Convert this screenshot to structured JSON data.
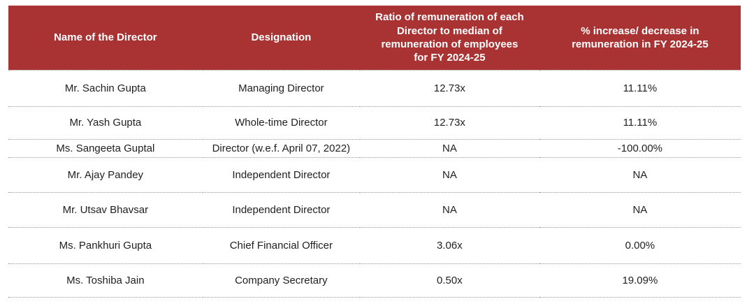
{
  "table": {
    "title_semantic": "Director remuneration ratio table",
    "colors": {
      "header_background": "#A93232",
      "header_text": "#FFFFFF",
      "body_text": "#212121",
      "row_divider": "#979797"
    },
    "columns": [
      {
        "label": "Name of the Director"
      },
      {
        "label": "Designation"
      },
      {
        "label": "Ratio of remuneration of each\nDirector to median of\nremuneration of employees\nfor FY 2024-25"
      },
      {
        "label": "% increase/ decrease in\nremuneration in FY 2024-25"
      }
    ],
    "rows": [
      {
        "name": "Mr. Sachin Gupta",
        "designation": "Managing Director",
        "ratio": "12.73x",
        "change": "11.11%"
      },
      {
        "name": "Mr. Yash Gupta",
        "designation": "Whole-time Director",
        "ratio": "12.73x",
        "change": "11.11%"
      },
      {
        "name": "Ms. Sangeeta Guptal",
        "designation": "Director (w.e.f. April 07, 2022)",
        "ratio": "NA",
        "change": "-100.00%"
      },
      {
        "name": "Mr. Ajay Pandey",
        "designation": "Independent Director",
        "ratio": "NA",
        "change": "NA"
      },
      {
        "name": "Mr. Utsav Bhavsar",
        "designation": "Independent Director",
        "ratio": "NA",
        "change": "NA"
      },
      {
        "name": "Ms. Pankhuri Gupta",
        "designation": "Chief Financial Officer",
        "ratio": "3.06x",
        "change": "0.00%"
      },
      {
        "name": "Ms. Toshiba Jain",
        "designation": "Company Secretary",
        "ratio": "0.50x",
        "change": "19.09%"
      }
    ]
  }
}
